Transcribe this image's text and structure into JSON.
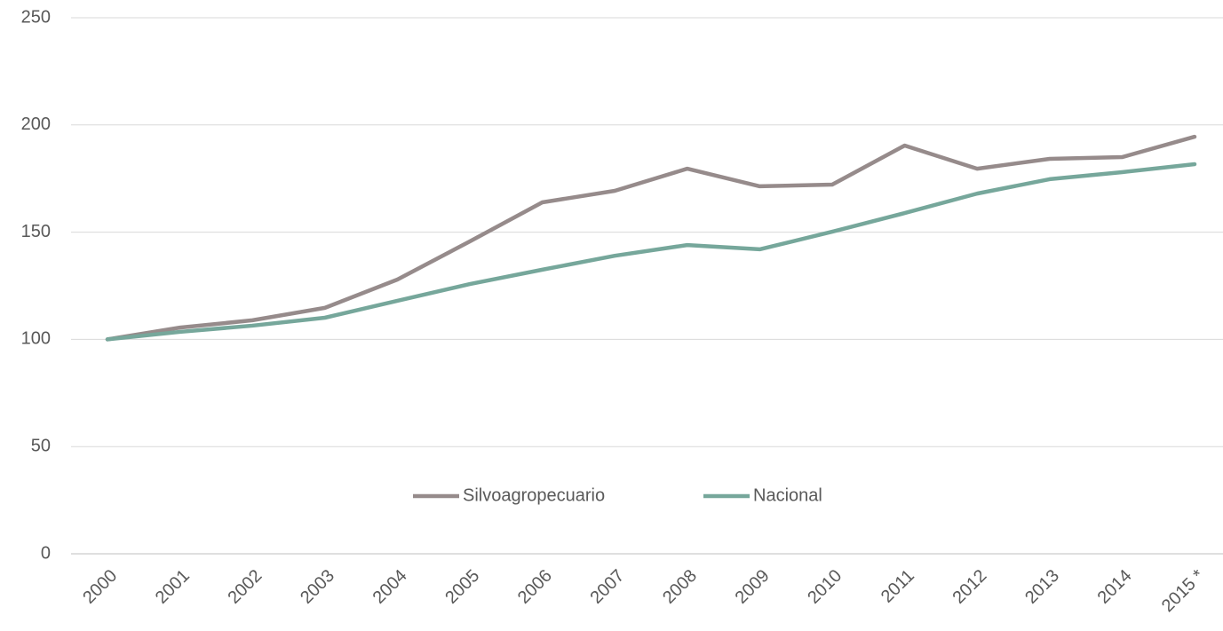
{
  "chart_data": {
    "type": "line",
    "categories": [
      "2000",
      "2001",
      "2002",
      "2003",
      "2004",
      "2005",
      "2006",
      "2007",
      "2008",
      "2009",
      "2010",
      "2011",
      "2012",
      "2013",
      "2014",
      "2015 *"
    ],
    "series": [
      {
        "name": "Silvoagropecuario",
        "color": "#968b8b",
        "values": [
          100,
          105.5,
          108.9,
          114.7,
          127.9,
          145.7,
          163.9,
          169.3,
          179.6,
          171.4,
          172.2,
          190.4,
          179.6,
          184.2,
          185,
          194.5
        ]
      },
      {
        "name": "Nacional",
        "color": "#76a79b",
        "values": [
          100,
          103.5,
          106.4,
          110.1,
          118,
          125.8,
          132.5,
          139,
          144,
          142,
          150.2,
          158.9,
          168,
          174.7,
          178,
          181.7
        ]
      }
    ],
    "ylim": [
      0,
      250
    ],
    "yticks": [
      0,
      50,
      100,
      150,
      200,
      250
    ],
    "grid": true,
    "legend": "bottom-center"
  }
}
